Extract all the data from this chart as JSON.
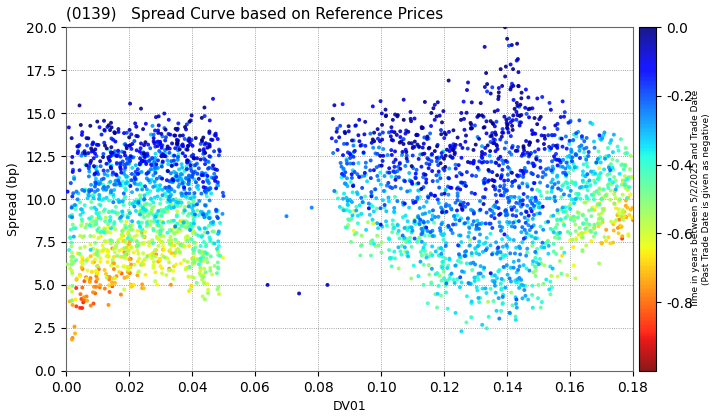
{
  "title": "(0139)   Spread Curve based on Reference Prices",
  "xlabel": "DV01",
  "ylabel": "Spread (bp)",
  "colorbar_label": "Time in years between 5/2/2025 and Trade Date\n(Past Trade Date is given as negative)",
  "colorbar_ticks": [
    0.0,
    -0.2,
    -0.4,
    -0.6,
    -0.8
  ],
  "xlim": [
    0.0,
    0.18
  ],
  "ylim": [
    0.0,
    20.0
  ],
  "xticks": [
    0.0,
    0.02,
    0.04,
    0.06,
    0.08,
    0.1,
    0.12,
    0.14,
    0.16,
    0.18
  ],
  "yticks": [
    0.0,
    2.5,
    5.0,
    7.5,
    10.0,
    12.5,
    15.0,
    17.5,
    20.0
  ],
  "background_color": "#ffffff",
  "grid_color": "#888888",
  "cmap": "jet_r",
  "vmin": -1.0,
  "vmax": 0.0,
  "marker_size": 8,
  "figsize": [
    7.2,
    4.2
  ],
  "dpi": 100
}
